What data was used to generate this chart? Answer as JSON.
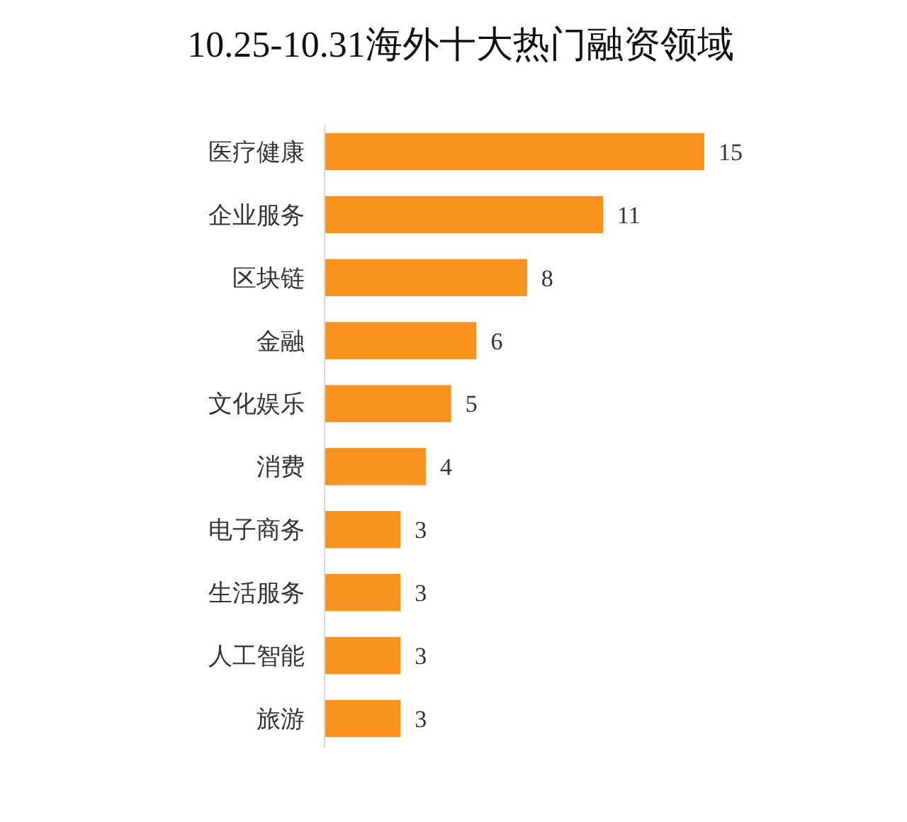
{
  "chart_data": {
    "type": "bar",
    "orientation": "horizontal",
    "title": "10.25-10.31海外十大热门融资领域",
    "categories": [
      "医疗健康",
      "企业服务",
      "区块链",
      "金融",
      "文化娱乐",
      "消费",
      "电子商务",
      "生活服务",
      "人工智能",
      "旅游"
    ],
    "values": [
      15,
      11,
      8,
      6,
      5,
      4,
      3,
      3,
      3,
      3
    ],
    "color": "#f7931e",
    "data_labels": true,
    "tick_labels": "y"
  }
}
